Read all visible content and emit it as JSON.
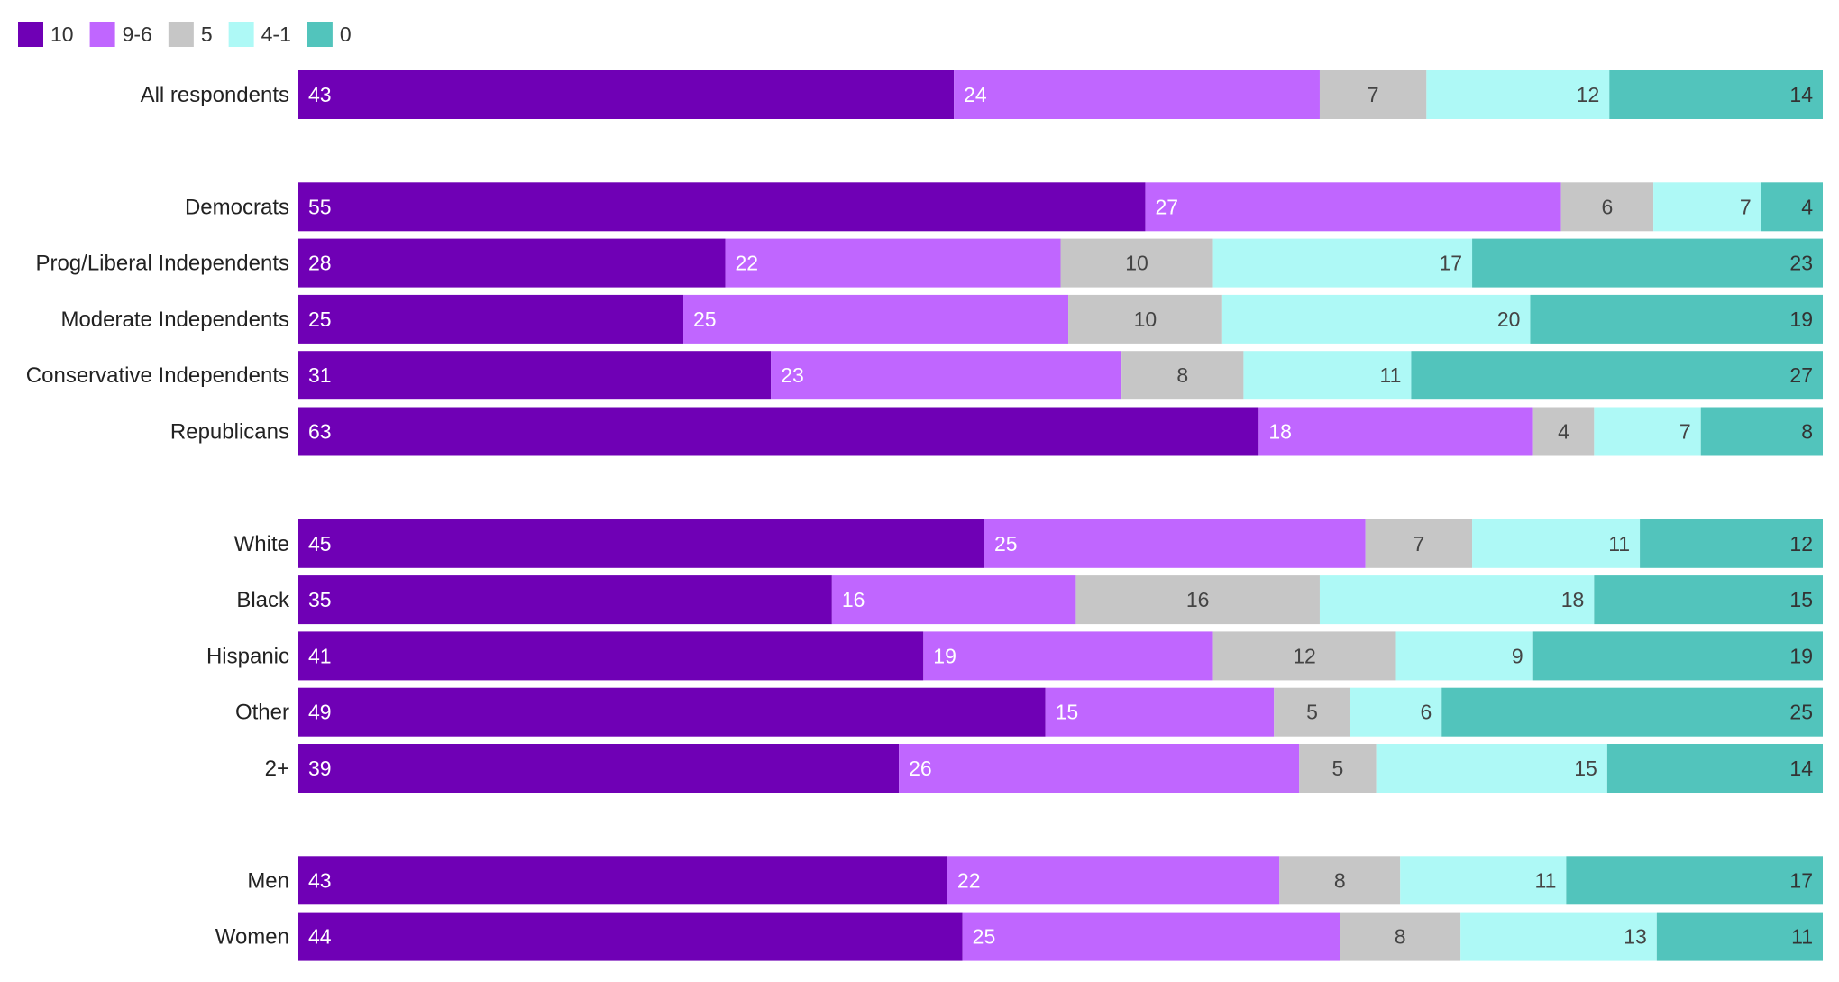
{
  "chart_data": {
    "type": "bar",
    "orientation": "horizontal",
    "stacked": true,
    "normalized": true,
    "legend_position": "top-left",
    "series": [
      {
        "name": "10",
        "color": "#6f00b5",
        "text_color": "#ffffff",
        "label_align": "start"
      },
      {
        "name": "9-6",
        "color": "#c066ff",
        "text_color": "#ffffff",
        "label_align": "start"
      },
      {
        "name": "5",
        "color": "#c6c6c6",
        "text_color": "#444444",
        "label_align": "center"
      },
      {
        "name": "4-1",
        "color": "#aef9f6",
        "text_color": "#444444",
        "label_align": "end"
      },
      {
        "name": "0",
        "color": "#52c4bc",
        "text_color": "#333333",
        "label_align": "end"
      }
    ],
    "groups": [
      {
        "rows": [
          {
            "label": "All respondents",
            "values": [
              43,
              24,
              7,
              12,
              14
            ]
          }
        ]
      },
      {
        "rows": [
          {
            "label": "Democrats",
            "values": [
              55,
              27,
              6,
              7,
              4
            ]
          },
          {
            "label": "Prog/Liberal Independents",
            "values": [
              28,
              22,
              10,
              17,
              23
            ]
          },
          {
            "label": "Moderate Independents",
            "values": [
              25,
              25,
              10,
              20,
              19
            ]
          },
          {
            "label": "Conservative Independents",
            "values": [
              31,
              23,
              8,
              11,
              27
            ]
          },
          {
            "label": "Republicans",
            "values": [
              63,
              18,
              4,
              7,
              8
            ]
          }
        ]
      },
      {
        "rows": [
          {
            "label": "White",
            "values": [
              45,
              25,
              7,
              11,
              12
            ]
          },
          {
            "label": "Black",
            "values": [
              35,
              16,
              16,
              18,
              15
            ]
          },
          {
            "label": "Hispanic",
            "values": [
              41,
              19,
              12,
              9,
              19
            ]
          },
          {
            "label": "Other",
            "values": [
              49,
              15,
              5,
              6,
              25
            ]
          },
          {
            "label": "2+",
            "values": [
              39,
              26,
              5,
              15,
              14
            ]
          }
        ]
      },
      {
        "rows": [
          {
            "label": "Men",
            "values": [
              43,
              22,
              8,
              11,
              17
            ]
          },
          {
            "label": "Women",
            "values": [
              44,
              25,
              8,
              13,
              11
            ]
          }
        ]
      }
    ]
  }
}
